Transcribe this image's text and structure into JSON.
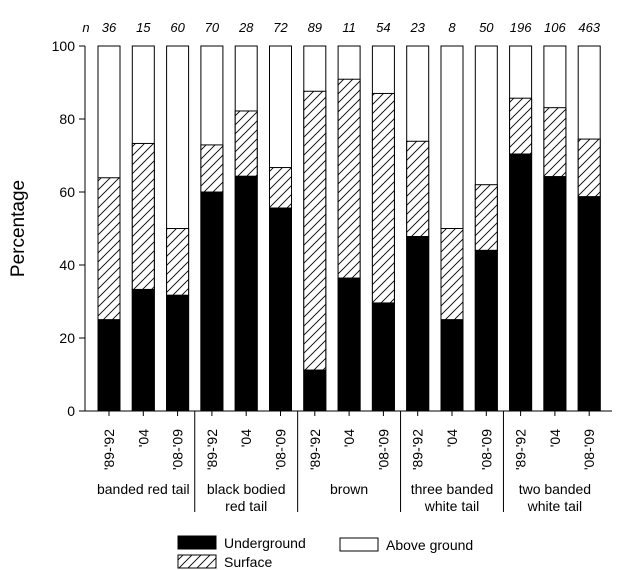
{
  "chart_data": {
    "type": "bar",
    "stacked": true,
    "ylabel": "Percentage",
    "ylim": [
      0,
      100
    ],
    "yticks": [
      0,
      20,
      40,
      60,
      80,
      100
    ],
    "n_prefix": "n",
    "groups": [
      {
        "label_lines": [
          "banded red tail"
        ],
        "categories": [
          "'89-'92",
          "'04",
          "'08-'09"
        ],
        "n": [
          "36",
          "15",
          "60"
        ],
        "underground": [
          25,
          33.3,
          31.7
        ],
        "surface": [
          38.9,
          40,
          18.3
        ]
      },
      {
        "label_lines": [
          "black bodied",
          "red tail"
        ],
        "categories": [
          "'89-'92",
          "'04",
          "'08-'09"
        ],
        "n": [
          "70",
          "28",
          "72"
        ],
        "underground": [
          60,
          64.3,
          55.6
        ],
        "surface": [
          12.9,
          17.9,
          11.1
        ]
      },
      {
        "label_lines": [
          "brown"
        ],
        "categories": [
          "'89-'92",
          "'04",
          "'08-'09"
        ],
        "n": [
          "89",
          "11",
          "54"
        ],
        "underground": [
          11.2,
          36.4,
          29.6
        ],
        "surface": [
          76.4,
          54.5,
          57.4
        ]
      },
      {
        "label_lines": [
          "three banded",
          "white tail"
        ],
        "categories": [
          "'89-'92",
          "'04",
          "'08-'09"
        ],
        "n": [
          "23",
          "8",
          "50"
        ],
        "underground": [
          47.8,
          25,
          44
        ],
        "surface": [
          26.1,
          25,
          18
        ]
      },
      {
        "label_lines": [
          "two banded",
          "white tail"
        ],
        "categories": [
          "'89-'92",
          "'04",
          "'08-'09"
        ],
        "n": [
          "196",
          "106",
          "463"
        ],
        "underground": [
          70.4,
          64.2,
          58.7
        ],
        "surface": [
          15.3,
          18.9,
          15.8
        ]
      }
    ],
    "series": [
      {
        "name": "Underground",
        "fill": "#000000"
      },
      {
        "name": "Surface",
        "fill": "hatch"
      },
      {
        "name": "Above ground",
        "fill": "#ffffff"
      }
    ],
    "legend_position": "bottom",
    "grid": false
  }
}
